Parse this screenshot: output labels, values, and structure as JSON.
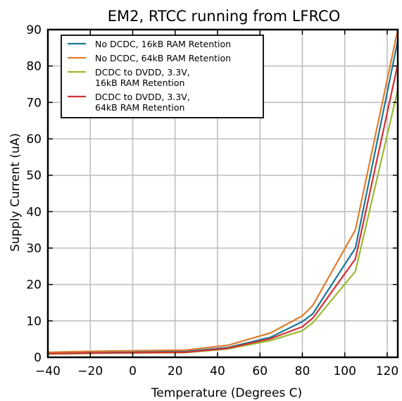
{
  "chart_data": {
    "type": "line",
    "title": "EM2, RTCC running from LFRCO",
    "xlabel": "Temperature (Degrees C)",
    "ylabel": "Supply Current (uA)",
    "xlim": [
      -40,
      125
    ],
    "ylim": [
      0,
      90
    ],
    "xticks": [
      -40,
      -20,
      0,
      20,
      40,
      60,
      80,
      100,
      120
    ],
    "yticks": [
      0,
      10,
      20,
      30,
      40,
      50,
      60,
      70,
      80,
      90
    ],
    "xtick_labels": [
      "−40",
      "−20",
      "0",
      "20",
      "40",
      "60",
      "80",
      "100",
      "120"
    ],
    "ytick_labels": [
      "0",
      "10",
      "20",
      "30",
      "40",
      "50",
      "60",
      "70",
      "80",
      "90"
    ],
    "grid": true,
    "legend_position": "top-left",
    "x": [
      -40,
      -15,
      25,
      45,
      65,
      80,
      85,
      105,
      125
    ],
    "series": [
      {
        "name": "No DCDC, 16kB RAM Retention",
        "color": "#1a7896",
        "values": [
          1.1,
          1.3,
          1.6,
          2.7,
          5.5,
          9.8,
          12.0,
          30.0,
          87.0
        ]
      },
      {
        "name": "No DCDC, 64kB RAM Retention",
        "color": "#e07c2b",
        "values": [
          1.4,
          1.7,
          2.0,
          3.3,
          6.7,
          11.4,
          14.3,
          35.0,
          90.0
        ]
      },
      {
        "name": "DCDC to DVDD, 3.3V,\n16kB RAM Retention",
        "color": "#9abb2f",
        "values": [
          0.9,
          1.1,
          1.3,
          2.3,
          4.6,
          7.3,
          9.5,
          23.6,
          73.5
        ]
      },
      {
        "name": "DCDC to DVDD, 3.3V,\n64kB RAM Retention",
        "color": "#d43035",
        "values": [
          1.0,
          1.2,
          1.4,
          2.5,
          5.1,
          8.4,
          10.8,
          27.0,
          80.5
        ]
      }
    ]
  }
}
